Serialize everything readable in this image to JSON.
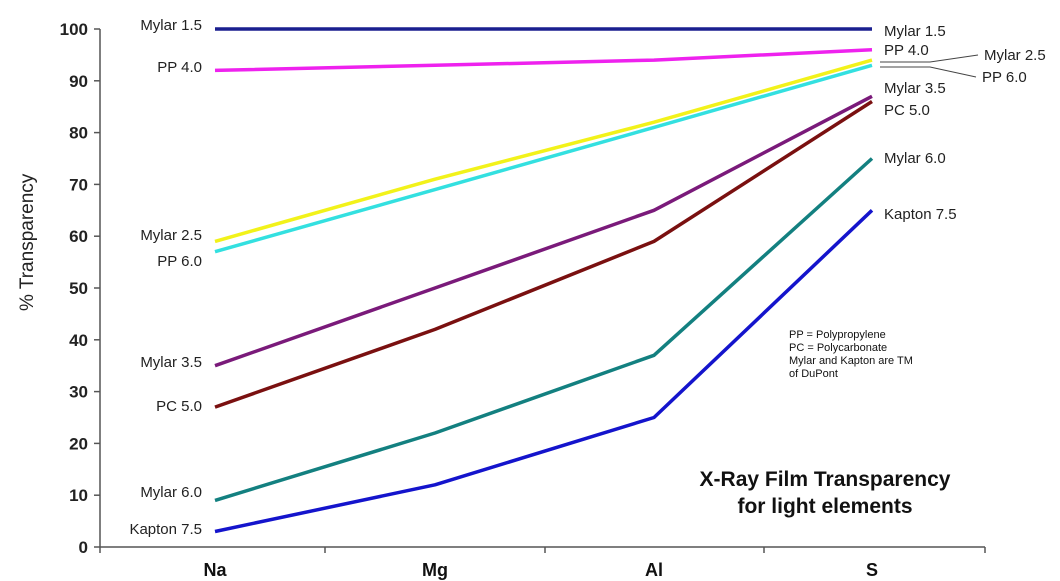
{
  "chart_data": {
    "type": "line",
    "title": "X-Ray Film Transparency",
    "subtitle": "for light elements",
    "xlabel": "",
    "ylabel": "%  Transparency",
    "categories": [
      "Na",
      "Mg",
      "Al",
      "S"
    ],
    "ylim": [
      0,
      100
    ],
    "yticks": [
      "0",
      "10",
      "20",
      "30",
      "40",
      "50",
      "60",
      "70",
      "80",
      "90",
      "100"
    ],
    "grid": false,
    "series": [
      {
        "name": "Mylar 1.5",
        "color": "#1a1f8f",
        "values": [
          100,
          100,
          100,
          100
        ]
      },
      {
        "name": "PP 4.0",
        "color": "#ee22ee",
        "values": [
          92,
          93,
          94,
          96
        ]
      },
      {
        "name": "Mylar 2.5",
        "color": "#f2f21a",
        "values": [
          59,
          71,
          82,
          94
        ]
      },
      {
        "name": "PP 6.0",
        "color": "#33e0e0",
        "values": [
          57,
          69,
          81,
          93
        ]
      },
      {
        "name": "Mylar 3.5",
        "color": "#7a1a7a",
        "values": [
          35,
          50,
          65,
          87
        ]
      },
      {
        "name": "PC 5.0",
        "color": "#7a1010",
        "values": [
          27,
          42,
          59,
          86
        ]
      },
      {
        "name": "Mylar 6.0",
        "color": "#138080",
        "values": [
          9,
          22,
          37,
          75
        ]
      },
      {
        "name": "Kapton 7.5",
        "color": "#1414cc",
        "values": [
          3,
          12,
          25,
          65
        ]
      }
    ],
    "left_labels": [
      "Mylar 1.5",
      "PP 4.0",
      "Mylar 2.5",
      "PP 6.0",
      "Mylar 3.5",
      "PC 5.0",
      "Mylar 6.0",
      "Kapton 7.5"
    ],
    "right_labels": [
      "Mylar 1.5",
      "PP 4.0",
      "Mylar 2.5",
      "PP 6.0",
      "Mylar 3.5",
      "PC 5.0",
      "Mylar 6.0",
      "Kapton 7.5"
    ],
    "note": [
      "PP = Polypropylene",
      "PC = Polycarbonate",
      "Mylar and Kapton are TM\nof DuPont"
    ]
  }
}
